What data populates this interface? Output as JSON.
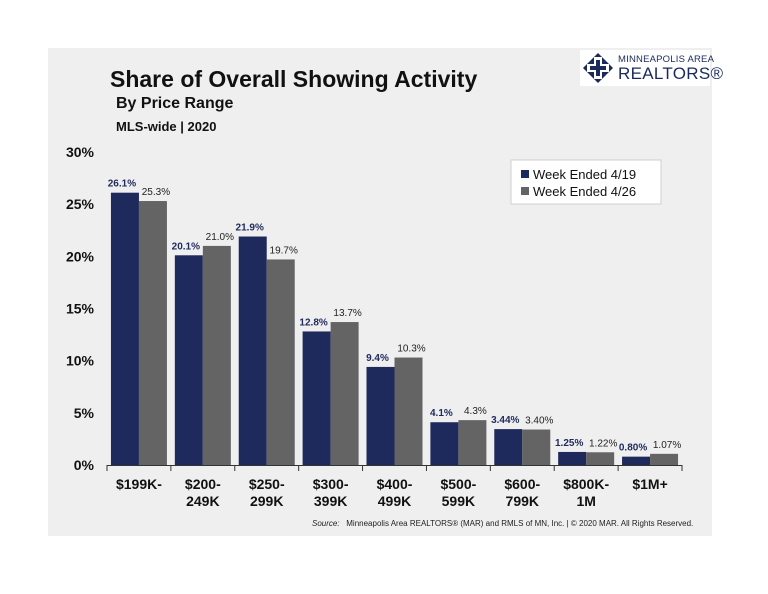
{
  "header": {
    "title": "Share of Overall Showing Activity",
    "subtitle": "By Price Range",
    "subtitle2": "MLS-wide  |  2020"
  },
  "logo": {
    "line1": "MINNEAPOLIS AREA",
    "line2": "REALTORS®",
    "icon": "mar-cross-logo-icon"
  },
  "source": {
    "label": "Source:",
    "text": "Minneapolis Area REALTORS® (MAR) and RMLS of MN, Inc.  |  © 2020 MAR. All Rights Reserved."
  },
  "colors": {
    "series1": "#1f2a5c",
    "series2": "#646464",
    "label1": "#1f2a5c",
    "label2": "#222222",
    "panel": "#efefef"
  },
  "chart_data": {
    "type": "bar",
    "ylim": [
      0,
      30
    ],
    "yticks": [
      "0%",
      "5%",
      "10%",
      "15%",
      "20%",
      "25%",
      "30%"
    ],
    "categories": [
      [
        "$199K-"
      ],
      [
        "$200-",
        "249K"
      ],
      [
        "$250-",
        "299K"
      ],
      [
        "$300-",
        "399K"
      ],
      [
        "$400-",
        "499K"
      ],
      [
        "$500-",
        "599K"
      ],
      [
        "$600-",
        "799K"
      ],
      [
        "$800K-",
        "1M"
      ],
      [
        "$1M+"
      ]
    ],
    "series": [
      {
        "name": "Week Ended 4/19",
        "values": [
          26.1,
          20.1,
          21.9,
          12.8,
          9.4,
          4.1,
          3.44,
          1.25,
          0.8
        ],
        "labels": [
          "26.1%",
          "20.1%",
          "21.9%",
          "12.8%",
          "9.4%",
          "4.1%",
          "3.44%",
          "1.25%",
          "0.80%"
        ]
      },
      {
        "name": "Week Ended 4/26",
        "values": [
          25.3,
          21.0,
          19.7,
          13.7,
          10.3,
          4.3,
          3.4,
          1.22,
          1.07
        ],
        "labels": [
          "25.3%",
          "21.0%",
          "19.7%",
          "13.7%",
          "10.3%",
          "4.3%",
          "3.40%",
          "1.22%",
          "1.07%"
        ]
      }
    ],
    "legend": "top-right",
    "grid": false
  }
}
